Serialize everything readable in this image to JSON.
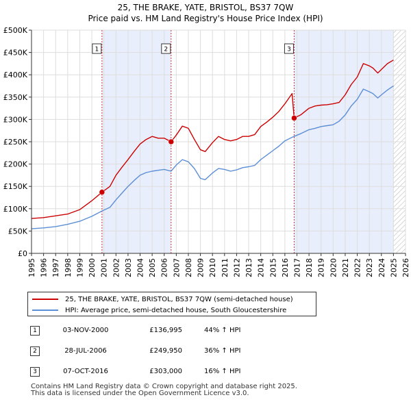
{
  "title": "25, THE BRAKE, YATE, BRISTOL, BS37 7QW",
  "subtitle": "Price paid vs. HM Land Registry's House Price Index (HPI)",
  "legend": {
    "property_label": "25, THE BRAKE, YATE, BRISTOL, BS37 7QW (semi-detached house)",
    "hpi_label": "HPI: Average price, semi-detached house, South Gloucestershire"
  },
  "colors": {
    "property": "#cc0000",
    "hpi": "#5b8ed6",
    "shade": "#e8eefb",
    "grid": "#dddddd",
    "sale_marker": "#cc0000"
  },
  "sales": [
    {
      "num": "1",
      "date": "03-NOV-2000",
      "price": "£136,995",
      "diff": "44% ↑ HPI",
      "t": 2000.84,
      "value": 136995
    },
    {
      "num": "2",
      "date": "28-JUL-2006",
      "price": "£249,950",
      "diff": "36% ↑ HPI",
      "t": 2006.57,
      "value": 249950
    },
    {
      "num": "3",
      "date": "07-OCT-2016",
      "price": "£303,000",
      "diff": "16% ↑ HPI",
      "t": 2016.77,
      "value": 303000
    }
  ],
  "footer": {
    "line1": "Contains HM Land Registry data © Crown copyright and database right 2025.",
    "line2": "This data is licensed under the Open Government Licence v3.0."
  },
  "chart_data": {
    "type": "line",
    "title": "25, THE BRAKE, YATE, BRISTOL, BS37 7QW",
    "subtitle": "Price paid vs. HM Land Registry's House Price Index (HPI)",
    "xlim": [
      1995,
      2026
    ],
    "ylim": [
      0,
      500000
    ],
    "x_ticks": [
      1995,
      1996,
      1997,
      1998,
      1999,
      2000,
      2001,
      2002,
      2003,
      2004,
      2005,
      2006,
      2007,
      2008,
      2009,
      2010,
      2011,
      2012,
      2013,
      2014,
      2015,
      2016,
      2017,
      2018,
      2019,
      2020,
      2021,
      2022,
      2023,
      2024,
      2025,
      2026
    ],
    "y_ticks": [
      {
        "value": 0,
        "label": "£0"
      },
      {
        "value": 50000,
        "label": "£50K"
      },
      {
        "value": 100000,
        "label": "£100K"
      },
      {
        "value": 150000,
        "label": "£150K"
      },
      {
        "value": 200000,
        "label": "£200K"
      },
      {
        "value": 250000,
        "label": "£250K"
      },
      {
        "value": 300000,
        "label": "£300K"
      },
      {
        "value": 350000,
        "label": "£350K"
      },
      {
        "value": 400000,
        "label": "£400K"
      },
      {
        "value": 450000,
        "label": "£450K"
      },
      {
        "value": 500000,
        "label": "£500K"
      }
    ],
    "shaded_ranges": [
      [
        2000.84,
        2006.57
      ],
      [
        2016.77,
        2025.0
      ]
    ],
    "hatched_range": [
      2025.0,
      2026.0
    ],
    "series": [
      {
        "name": "25, THE BRAKE, YATE, BRISTOL, BS37 7QW (semi-detached house)",
        "x": [
          1995,
          1996,
          1997,
          1998,
          1999,
          2000,
          2000.84,
          2001.5,
          2002,
          2002.5,
          2003,
          2003.5,
          2004,
          2004.5,
          2005,
          2005.5,
          2006,
          2006.57,
          2007,
          2007.5,
          2008,
          2008.5,
          2009,
          2009.4,
          2010,
          2010.5,
          2011,
          2011.5,
          2012,
          2012.5,
          2013,
          2013.5,
          2014,
          2014.5,
          2015,
          2015.5,
          2016,
          2016.6,
          2016.77,
          2017.3,
          2018,
          2018.5,
          2019,
          2019.5,
          2020,
          2020.5,
          2021,
          2021.5,
          2022,
          2022.5,
          2023,
          2023.3,
          2023.7,
          2024,
          2024.5,
          2025
        ],
        "values": [
          78000,
          80000,
          84000,
          88000,
          98000,
          118000,
          136995,
          150000,
          175000,
          193000,
          210000,
          228000,
          245000,
          255000,
          262000,
          258000,
          258000,
          249950,
          265000,
          285000,
          280000,
          255000,
          232000,
          228000,
          248000,
          262000,
          255000,
          252000,
          255000,
          262000,
          262000,
          266000,
          284000,
          294000,
          305000,
          318000,
          335000,
          358000,
          303000,
          310000,
          325000,
          330000,
          332000,
          333000,
          335000,
          338000,
          355000,
          378000,
          395000,
          425000,
          420000,
          415000,
          404000,
          412000,
          425000,
          433000
        ]
      },
      {
        "name": "HPI: Average price, semi-detached house, South Gloucestershire",
        "x": [
          1995,
          1996,
          1997,
          1998,
          1999,
          2000,
          2000.84,
          2001.5,
          2002,
          2002.5,
          2003,
          2003.5,
          2004,
          2004.5,
          2005,
          2005.5,
          2006,
          2006.57,
          2007,
          2007.5,
          2008,
          2008.5,
          2009,
          2009.4,
          2010,
          2010.5,
          2011,
          2011.5,
          2012,
          2012.5,
          2013,
          2013.5,
          2014,
          2014.5,
          2015,
          2015.5,
          2016,
          2016.6,
          2016.77,
          2017.3,
          2018,
          2018.5,
          2019,
          2019.5,
          2020,
          2020.5,
          2021,
          2021.5,
          2022,
          2022.5,
          2023,
          2023.3,
          2023.7,
          2024,
          2024.5,
          2025
        ],
        "values": [
          55000,
          57000,
          60000,
          65000,
          72000,
          83000,
          95000,
          103000,
          120000,
          135000,
          150000,
          163000,
          175000,
          181000,
          184000,
          186000,
          188000,
          184000,
          198000,
          210000,
          205000,
          190000,
          168000,
          165000,
          180000,
          190000,
          188000,
          184000,
          187000,
          192000,
          194000,
          197000,
          210000,
          220000,
          230000,
          240000,
          252000,
          260000,
          262000,
          268000,
          277000,
          280000,
          284000,
          286000,
          288000,
          296000,
          310000,
          330000,
          345000,
          368000,
          362000,
          358000,
          348000,
          355000,
          366000,
          375000
        ]
      }
    ]
  }
}
